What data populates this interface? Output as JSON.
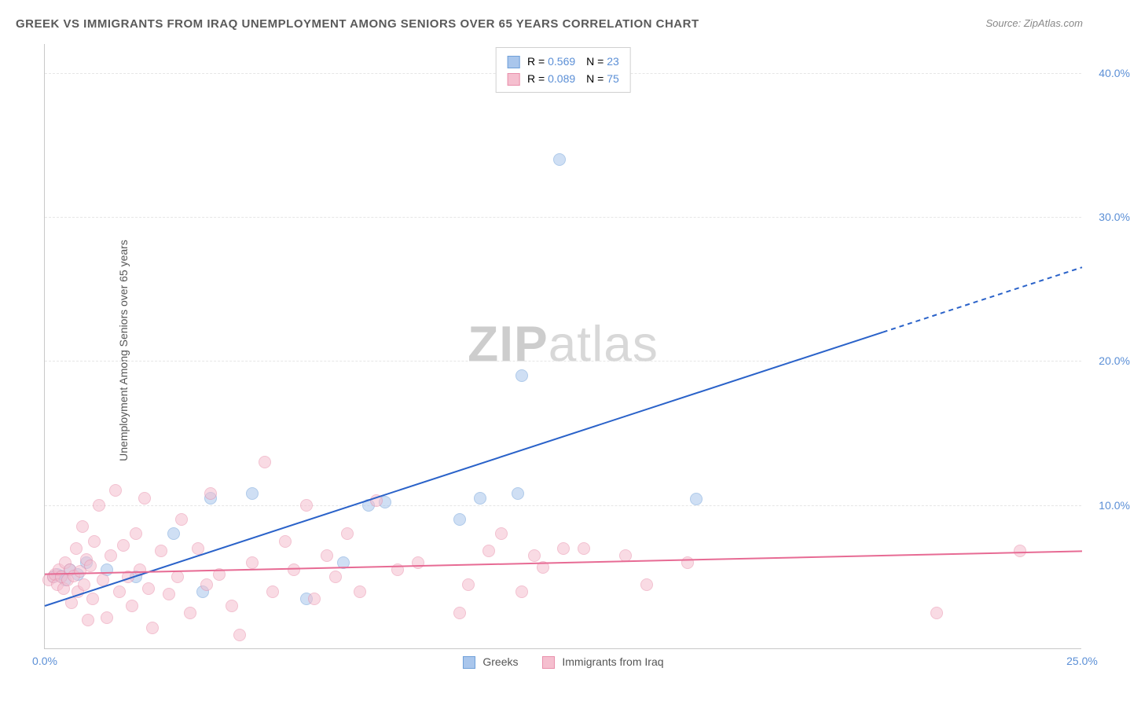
{
  "title": "GREEK VS IMMIGRANTS FROM IRAQ UNEMPLOYMENT AMONG SENIORS OVER 65 YEARS CORRELATION CHART",
  "source": "Source: ZipAtlas.com",
  "y_axis_title": "Unemployment Among Seniors over 65 years",
  "watermark": {
    "bold": "ZIP",
    "rest": "atlas"
  },
  "chart": {
    "type": "scatter",
    "background": "#ffffff",
    "grid_color": "#e6e6e6",
    "axis_color": "#c8c8c8",
    "tick_label_color": "#5b8fd6",
    "axis_title_color": "#555555",
    "xlim": [
      0,
      25
    ],
    "ylim": [
      0,
      42
    ],
    "x_ticks": [
      0,
      25
    ],
    "x_tick_labels": [
      "0.0%",
      "25.0%"
    ],
    "y_ticks": [
      10,
      20,
      30,
      40
    ],
    "y_tick_labels": [
      "10.0%",
      "20.0%",
      "30.0%",
      "40.0%"
    ],
    "marker_radius": 8,
    "marker_opacity": 0.55,
    "line_width": 2
  },
  "series": [
    {
      "id": "greeks",
      "label": "Greeks",
      "marker_fill": "#a9c6ec",
      "marker_stroke": "#6fa0d9",
      "line_color": "#2a62c9",
      "R": "0.569",
      "N": "23",
      "trend": {
        "x1": 0,
        "y1": 3.0,
        "x2": 20.2,
        "y2": 22.0,
        "dash_x2": 25,
        "dash_y2": 26.5
      },
      "points": [
        [
          0.2,
          5
        ],
        [
          0.3,
          5.2
        ],
        [
          0.4,
          5.1
        ],
        [
          0.5,
          4.8
        ],
        [
          0.6,
          5.5
        ],
        [
          0.8,
          5.2
        ],
        [
          1.0,
          6.0
        ],
        [
          1.5,
          5.5
        ],
        [
          2.2,
          5.0
        ],
        [
          3.1,
          8.0
        ],
        [
          3.8,
          4.0
        ],
        [
          4.0,
          10.5
        ],
        [
          5.0,
          10.8
        ],
        [
          6.3,
          3.5
        ],
        [
          7.2,
          6.0
        ],
        [
          7.8,
          10.0
        ],
        [
          8.2,
          10.2
        ],
        [
          10.0,
          9.0
        ],
        [
          10.5,
          10.5
        ],
        [
          11.4,
          10.8
        ],
        [
          11.5,
          19.0
        ],
        [
          12.4,
          34.0
        ],
        [
          15.7,
          10.4
        ]
      ]
    },
    {
      "id": "iraq",
      "label": "Immigrants from Iraq",
      "marker_fill": "#f5bfcf",
      "marker_stroke": "#e98fab",
      "line_color": "#e76b94",
      "R": "0.089",
      "N": "75",
      "trend": {
        "x1": 0,
        "y1": 5.2,
        "x2": 25,
        "y2": 6.8
      },
      "points": [
        [
          0.1,
          4.8
        ],
        [
          0.2,
          5.0
        ],
        [
          0.25,
          5.2
        ],
        [
          0.3,
          4.5
        ],
        [
          0.35,
          5.5
        ],
        [
          0.4,
          5.0
        ],
        [
          0.45,
          4.2
        ],
        [
          0.5,
          6.0
        ],
        [
          0.55,
          4.8
        ],
        [
          0.6,
          5.5
        ],
        [
          0.65,
          3.2
        ],
        [
          0.7,
          5.1
        ],
        [
          0.75,
          7.0
        ],
        [
          0.8,
          4.0
        ],
        [
          0.85,
          5.4
        ],
        [
          0.9,
          8.5
        ],
        [
          0.95,
          4.5
        ],
        [
          1.0,
          6.2
        ],
        [
          1.05,
          2.0
        ],
        [
          1.1,
          5.8
        ],
        [
          1.15,
          3.5
        ],
        [
          1.2,
          7.5
        ],
        [
          1.3,
          10.0
        ],
        [
          1.4,
          4.8
        ],
        [
          1.5,
          2.2
        ],
        [
          1.6,
          6.5
        ],
        [
          1.7,
          11.0
        ],
        [
          1.8,
          4.0
        ],
        [
          1.9,
          7.2
        ],
        [
          2.0,
          5.0
        ],
        [
          2.1,
          3.0
        ],
        [
          2.2,
          8.0
        ],
        [
          2.3,
          5.5
        ],
        [
          2.4,
          10.5
        ],
        [
          2.5,
          4.2
        ],
        [
          2.6,
          1.5
        ],
        [
          2.8,
          6.8
        ],
        [
          3.0,
          3.8
        ],
        [
          3.2,
          5.0
        ],
        [
          3.3,
          9.0
        ],
        [
          3.5,
          2.5
        ],
        [
          3.7,
          7.0
        ],
        [
          3.9,
          4.5
        ],
        [
          4.0,
          10.8
        ],
        [
          4.2,
          5.2
        ],
        [
          4.5,
          3.0
        ],
        [
          4.7,
          1.0
        ],
        [
          5.0,
          6.0
        ],
        [
          5.3,
          13.0
        ],
        [
          5.5,
          4.0
        ],
        [
          5.8,
          7.5
        ],
        [
          6.0,
          5.5
        ],
        [
          6.3,
          10.0
        ],
        [
          6.5,
          3.5
        ],
        [
          6.8,
          6.5
        ],
        [
          7.0,
          5.0
        ],
        [
          7.3,
          8.0
        ],
        [
          7.6,
          4.0
        ],
        [
          8.0,
          10.3
        ],
        [
          8.5,
          5.5
        ],
        [
          9.0,
          6.0
        ],
        [
          10.0,
          2.5
        ],
        [
          10.2,
          4.5
        ],
        [
          10.7,
          6.8
        ],
        [
          11.0,
          8.0
        ],
        [
          11.5,
          4.0
        ],
        [
          11.8,
          6.5
        ],
        [
          12.0,
          5.7
        ],
        [
          12.5,
          7.0
        ],
        [
          13.0,
          7.0
        ],
        [
          14.0,
          6.5
        ],
        [
          14.5,
          4.5
        ],
        [
          15.5,
          6.0
        ],
        [
          21.5,
          2.5
        ],
        [
          23.5,
          6.8
        ]
      ]
    }
  ],
  "legend_top": {
    "R_label": "R =",
    "N_label": "N ="
  },
  "legend_bottom": {}
}
